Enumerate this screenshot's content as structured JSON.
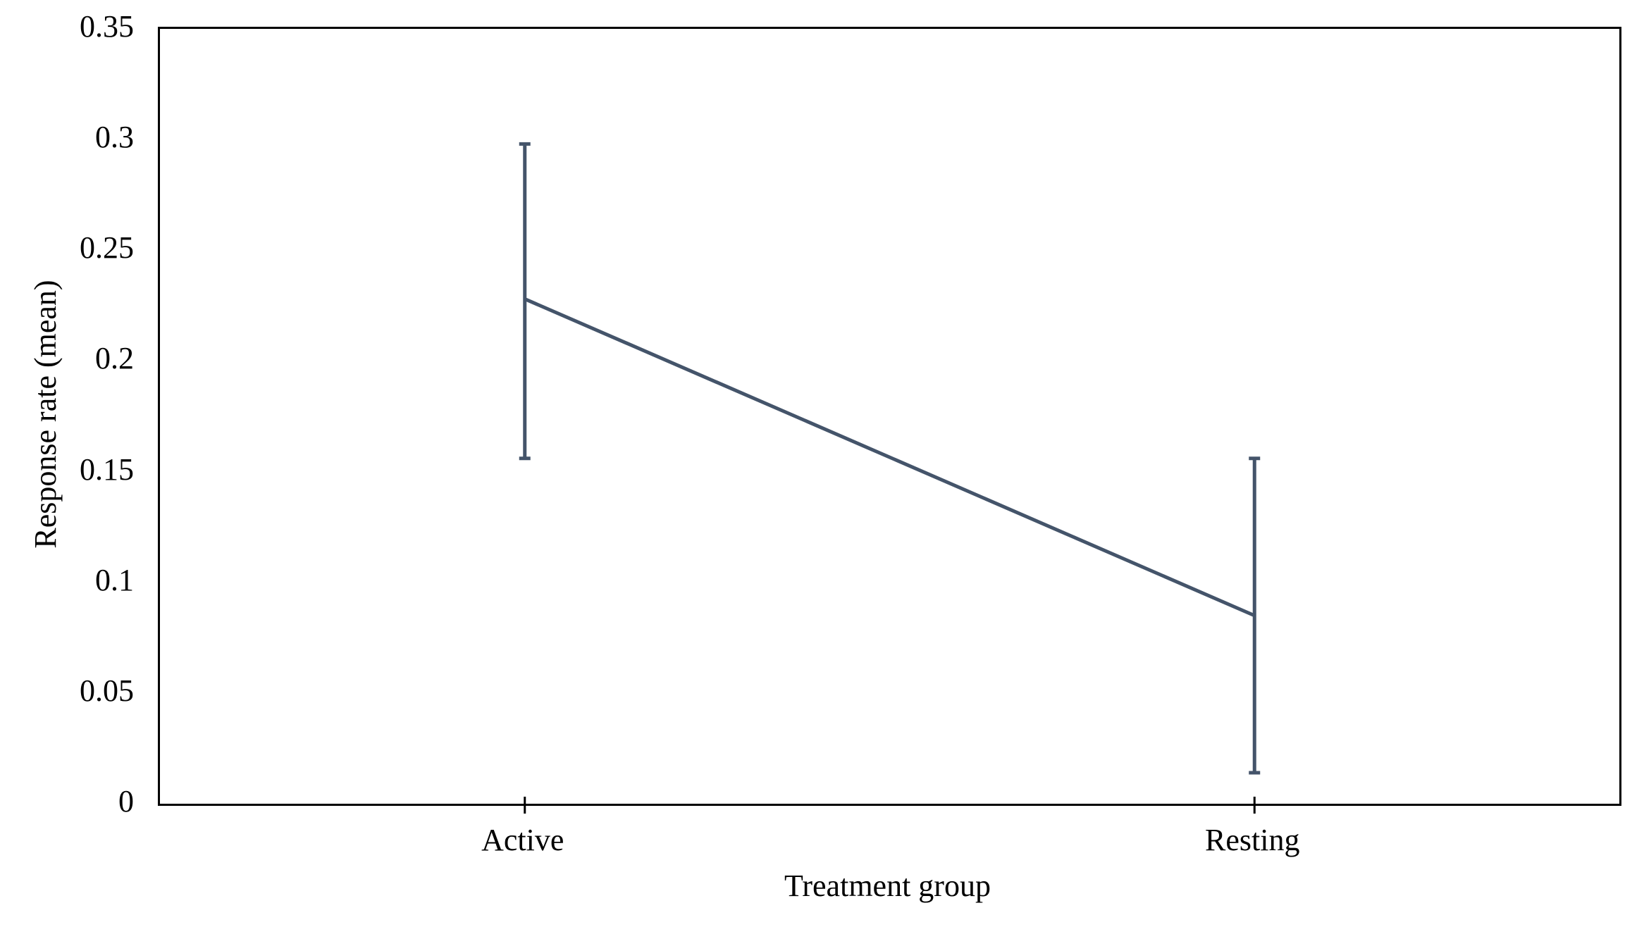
{
  "chart_data": {
    "type": "line",
    "title": "",
    "xlabel": "Treatment group",
    "ylabel": "Response rate (mean)",
    "categories": [
      "Active",
      "Resting"
    ],
    "series": [
      {
        "name": "Response rate (mean)",
        "values": [
          0.228,
          0.085
        ],
        "error_upper": [
          0.298,
          0.156
        ],
        "error_lower": [
          0.156,
          0.014
        ]
      }
    ],
    "ylim": [
      0,
      0.35
    ],
    "yticks": [
      {
        "value": 0,
        "label": "0"
      },
      {
        "value": 0.05,
        "label": "0.05"
      },
      {
        "value": 0.1,
        "label": "0.1"
      },
      {
        "value": 0.15,
        "label": "0.15"
      },
      {
        "value": 0.2,
        "label": "0.2"
      },
      {
        "value": 0.25,
        "label": "0.25"
      },
      {
        "value": 0.3,
        "label": "0.3"
      },
      {
        "value": 0.35,
        "label": "0.35"
      }
    ],
    "grid": "off",
    "legend": "none",
    "markers": "none",
    "line_color": "#44546A",
    "axis_color": "#000000",
    "background_color": "#FFFFFF"
  }
}
